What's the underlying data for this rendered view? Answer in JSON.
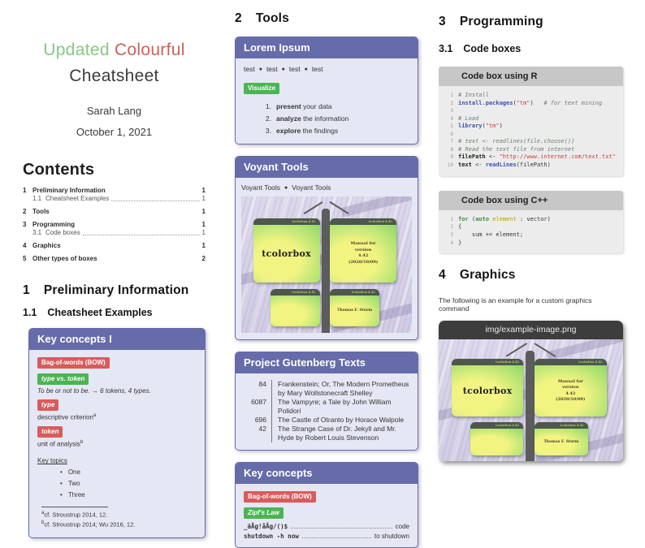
{
  "header": {
    "title_word1": "Updated",
    "title_word2": "Colourful",
    "title_line2": "Cheatsheet",
    "author": "Sarah Lang",
    "date": "October 1, 2021"
  },
  "contents": {
    "heading": "Contents",
    "entries": [
      {
        "num": "1",
        "label": "Preliminary Information",
        "page": "1",
        "sub": false
      },
      {
        "num": "1.1",
        "label": "Cheatsheet Examples",
        "page": "1",
        "sub": true
      },
      {
        "num": "2",
        "label": "Tools",
        "page": "1",
        "sub": false
      },
      {
        "num": "3",
        "label": "Programming",
        "page": "1",
        "sub": false
      },
      {
        "num": "3.1",
        "label": "Code boxes",
        "page": "1",
        "sub": true
      },
      {
        "num": "4",
        "label": "Graphics",
        "page": "1",
        "sub": false
      },
      {
        "num": "5",
        "label": "Other types of boxes",
        "page": "2",
        "sub": false
      }
    ]
  },
  "section1": {
    "number": "1",
    "title": "Preliminary Information",
    "sub_number": "1.1",
    "sub_title": "Cheatsheet Examples"
  },
  "key_concepts_1": {
    "title": "Key concepts I",
    "badge_bow": "Bag-of-words (BOW)",
    "badge_type_token": "type vs. token",
    "type_token_text": "To be or not to be. → 6 tokens, 4 types.",
    "badge_type": "type",
    "type_text": "descriptive criterion",
    "type_footnote_mark": "a",
    "badge_token": "token",
    "token_text": "unit of analysis",
    "token_footnote_mark": "b",
    "key_topics_label": "Key topics",
    "topics": [
      "One",
      "Two",
      "Three"
    ],
    "bullet_glyph": "•",
    "footnotes": [
      {
        "mark": "a",
        "text": "cf. Stroustrup 2014, 12."
      },
      {
        "mark": "b",
        "text": "cf. Stroustrup 2014; Wu 2016, 12."
      }
    ]
  },
  "section2": {
    "number": "2",
    "title": "Tools"
  },
  "lorem_box": {
    "title": "Lorem Ipsum",
    "test_items": [
      "test",
      "test",
      "test",
      "test"
    ],
    "separator_glyph": "●",
    "badge": "Visualize",
    "list": [
      {
        "num": "1.",
        "bold": "present",
        "rest": " your data"
      },
      {
        "num": "2.",
        "bold": "analyze",
        "rest": " the information"
      },
      {
        "num": "3.",
        "bold": "explore",
        "rest": " the findings"
      }
    ]
  },
  "voyant_box": {
    "title": "Voyant Tools",
    "items": [
      "Voyant Tools",
      "Voyant Tools"
    ],
    "separator_glyph": "●"
  },
  "gutenberg_box": {
    "title": "Project Gutenberg Texts",
    "rows": [
      {
        "id": "84",
        "text": "Frankenstein; Or, The Modern Prometheus by Mary Wollstonecraft Shelley"
      },
      {
        "id": "6087",
        "text": "The Vampyre; a Tale by John William Polidori"
      },
      {
        "id": "696",
        "text": "The Castle of Otranto by Horace Walpole"
      },
      {
        "id": "42",
        "text": "The Strange Case of Dr. Jekyll and Mr. Hyde by Robert Louis Stevenson"
      }
    ]
  },
  "key_concepts_2": {
    "title": "Key concepts",
    "badge_bow": "Bag-of-words (BOW)",
    "badge_zipf": "Zipf's Law",
    "lines": [
      {
        "code": "_äÅg!åÅg/()$",
        "desc": "code"
      },
      {
        "code": "shutdown -h now",
        "desc": "to shutdown"
      }
    ]
  },
  "section3": {
    "number": "3",
    "title": "Programming",
    "sub_number": "3.1",
    "sub_title": "Code boxes"
  },
  "r_box": {
    "title": "Code box using R",
    "lines": [
      {
        "n": "1",
        "t": [
          [
            "c",
            "# Install"
          ]
        ]
      },
      {
        "n": "2",
        "t": [
          [
            "f",
            "install.packages"
          ],
          [
            "p",
            "("
          ],
          [
            "s",
            "\"tm\""
          ],
          [
            "p",
            ")"
          ],
          [
            "p",
            "   "
          ],
          [
            "c",
            "# for text mining"
          ]
        ]
      },
      {
        "n": "3",
        "t": []
      },
      {
        "n": "4",
        "t": [
          [
            "c",
            "# Load"
          ]
        ]
      },
      {
        "n": "5",
        "t": [
          [
            "f",
            "library"
          ],
          [
            "p",
            "("
          ],
          [
            "s",
            "\"tm\""
          ],
          [
            "p",
            ")"
          ]
        ]
      },
      {
        "n": "6",
        "t": []
      },
      {
        "n": "7",
        "t": [
          [
            "c",
            "# text <- readlines(file.choose())"
          ]
        ]
      },
      {
        "n": "8",
        "t": [
          [
            "c",
            "# Read the text file from internet"
          ]
        ]
      },
      {
        "n": "9",
        "t": [
          [
            "b",
            "filePath"
          ],
          [
            "p",
            " <- "
          ],
          [
            "s",
            "\"http://www.internet.com/text.txt\""
          ]
        ]
      },
      {
        "n": "10",
        "t": [
          [
            "b",
            "text"
          ],
          [
            "p",
            " <- "
          ],
          [
            "f",
            "readLines"
          ],
          [
            "p",
            "(filePath)"
          ]
        ]
      }
    ]
  },
  "cpp_box": {
    "title": "Code box using C++",
    "lines": [
      {
        "n": "1",
        "t": [
          [
            "k",
            "for"
          ],
          [
            "p",
            " ("
          ],
          [
            "k",
            "auto"
          ],
          [
            "p",
            " "
          ],
          [
            "h",
            "element"
          ],
          [
            "p",
            " : vector)"
          ]
        ]
      },
      {
        "n": "2",
        "t": [
          [
            "p",
            "{"
          ]
        ]
      },
      {
        "n": "3",
        "t": [
          [
            "p",
            "    sum += element;"
          ]
        ]
      },
      {
        "n": "4",
        "t": [
          [
            "p",
            "}"
          ]
        ]
      }
    ]
  },
  "section4": {
    "number": "4",
    "title": "Graphics",
    "intro": "The following is an example for a custom graphics command"
  },
  "graphics_box": {
    "title": "img/example-image.png"
  },
  "tcolorbox_image": {
    "header_label": "tcolorbox 4.42",
    "main_label": "tcolorbox",
    "manual_lines": [
      "Manual for",
      "version",
      "4.42",
      "(2020/10/09)"
    ],
    "author": "Thomas F. Sturm"
  },
  "colors": {
    "purple": "#666baa",
    "lavender": "#e6e7f4",
    "badge-red": "#d85c5c",
    "badge-green": "#4bb454",
    "title-green": "#85c785",
    "title-red": "#cd5f57",
    "code-header": "#c7c7c7",
    "code-body": "#ececec",
    "dark-bar": "#3d3d3d"
  }
}
